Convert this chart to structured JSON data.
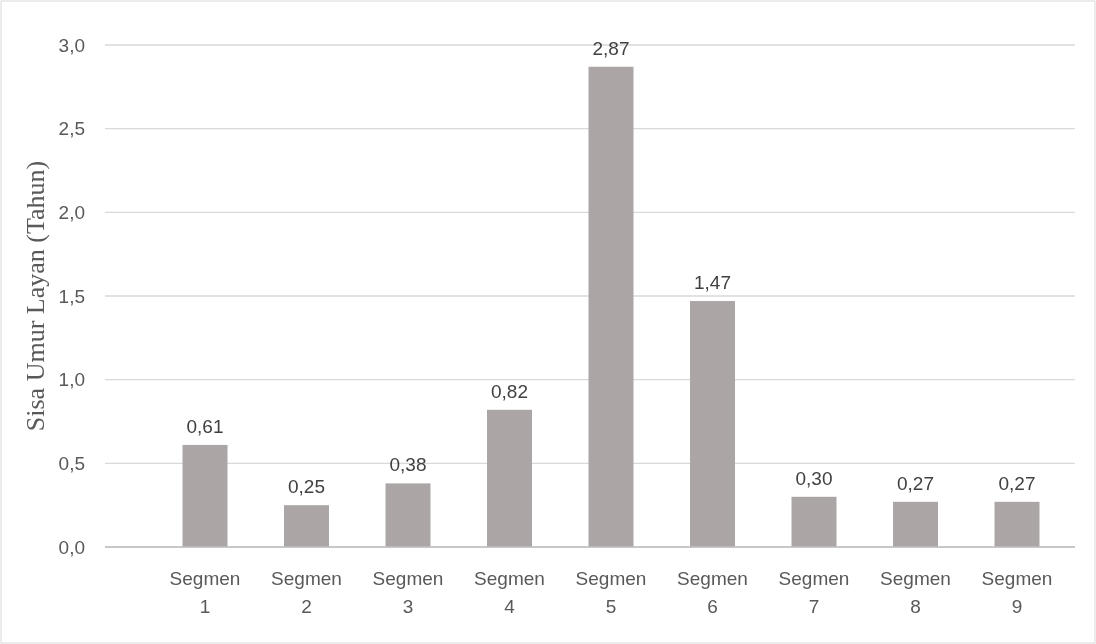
{
  "chart_data": {
    "type": "bar",
    "ylabel": "Sisa Umur Layan (Tahun)",
    "categories": [
      "Segmen 1",
      "Segmen 2",
      "Segmen 3",
      "Segmen 4",
      "Segmen 5",
      "Segmen 6",
      "Segmen 7",
      "Segmen 8",
      "Segmen 9"
    ],
    "values": [
      0.61,
      0.25,
      0.38,
      0.82,
      2.87,
      1.47,
      0.3,
      0.27,
      0.27
    ],
    "value_labels": [
      "0,61",
      "0,25",
      "0,38",
      "0,82",
      "2,87",
      "1,47",
      "0,30",
      "0,27",
      "0,27"
    ],
    "color": "#aba6a5",
    "ylim": [
      0,
      3
    ],
    "yticks": [
      {
        "value": 0,
        "label": "0,0"
      },
      {
        "value": 0.5,
        "label": "0,5"
      },
      {
        "value": 1,
        "label": "1,0"
      },
      {
        "value": 1.5,
        "label": "1,5"
      },
      {
        "value": 2,
        "label": "2,0"
      },
      {
        "value": 2.5,
        "label": "2,5"
      },
      {
        "value": 3,
        "label": "3,0"
      }
    ],
    "grid": "y"
  }
}
